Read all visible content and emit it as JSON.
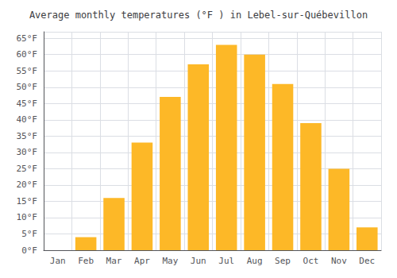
{
  "chart_data": {
    "type": "bar",
    "title": "Average monthly temperatures (°F ) in Lebel-sur-Québevillon",
    "categories": [
      "Jan",
      "Feb",
      "Mar",
      "Apr",
      "May",
      "Jun",
      "Jul",
      "Aug",
      "Sep",
      "Oct",
      "Nov",
      "Dec"
    ],
    "values": [
      0,
      4,
      16,
      33,
      47,
      57,
      63,
      60,
      51,
      39,
      25,
      7
    ],
    "color": "#FDB827",
    "ylim": [
      0,
      67
    ],
    "yticks": [
      {
        "value": 0,
        "label": "0°F"
      },
      {
        "value": 5,
        "label": "5°F"
      },
      {
        "value": 10,
        "label": "10°F"
      },
      {
        "value": 15,
        "label": "15°F"
      },
      {
        "value": 20,
        "label": "20°F"
      },
      {
        "value": 25,
        "label": "25°F"
      },
      {
        "value": 30,
        "label": "30°F"
      },
      {
        "value": 35,
        "label": "35°F"
      },
      {
        "value": 40,
        "label": "40°F"
      },
      {
        "value": 45,
        "label": "45°F"
      },
      {
        "value": 50,
        "label": "50°F"
      },
      {
        "value": 55,
        "label": "55°F"
      },
      {
        "value": 60,
        "label": "60°F"
      },
      {
        "value": 65,
        "label": "65°F"
      }
    ],
    "grid": true
  }
}
